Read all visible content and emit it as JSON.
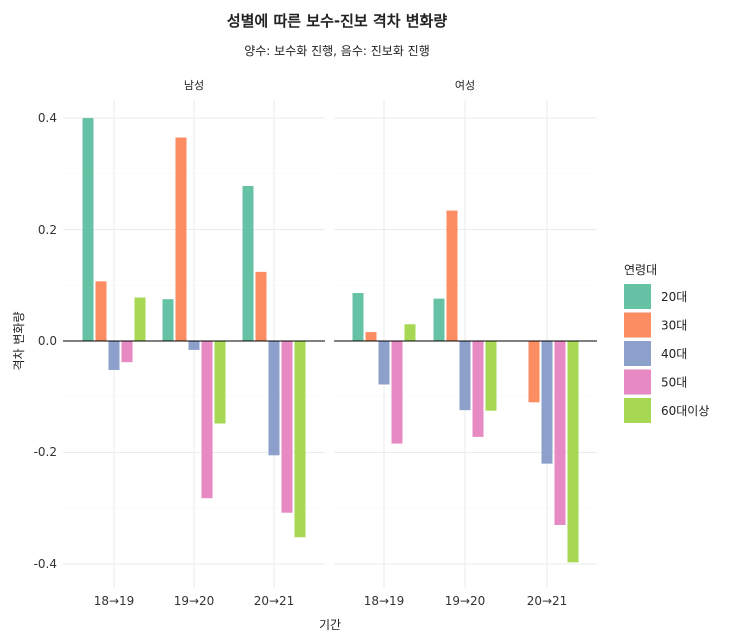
{
  "chart_data": {
    "type": "bar",
    "title": "성별에 따른 보수-진보 격차 변화량",
    "subtitle": "양수: 보수화 진행, 음수: 진보화 진행",
    "xlabel": "기간",
    "ylabel": "격차 변화량",
    "ylim": [
      -0.44,
      0.44
    ],
    "yticks": [
      -0.4,
      -0.2,
      0.0,
      0.2,
      0.4
    ],
    "ytick_labels": [
      "-0.4",
      "-0.2",
      "0.0",
      "0.2",
      "0.4"
    ],
    "categories": [
      "18→19",
      "19→20",
      "20→21"
    ],
    "legend": {
      "title": "연령대",
      "position": "right"
    },
    "grid": true,
    "series_names": [
      "20대",
      "30대",
      "40대",
      "50대",
      "60대이상"
    ],
    "colors": [
      "#66c2a5",
      "#fc8d62",
      "#8da0cb",
      "#e78ac3",
      "#a6d854"
    ],
    "panels": [
      {
        "label": "남성",
        "values": [
          [
            0.4,
            0.107,
            -0.052,
            -0.038,
            0.078
          ],
          [
            0.075,
            0.365,
            -0.016,
            -0.282,
            -0.148
          ],
          [
            0.278,
            0.124,
            -0.205,
            -0.308,
            -0.352
          ]
        ]
      },
      {
        "label": "여성",
        "values": [
          [
            0.086,
            0.016,
            -0.078,
            -0.184,
            0.03
          ],
          [
            0.076,
            0.234,
            -0.124,
            -0.172,
            -0.125
          ],
          [
            null,
            -0.11,
            -0.22,
            -0.33,
            -0.397
          ]
        ]
      }
    ]
  }
}
